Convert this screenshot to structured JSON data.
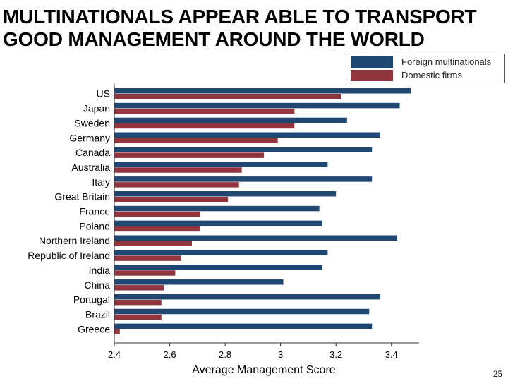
{
  "slide": {
    "title_line1": "MULTINATIONALS APPEAR ABLE TO TRANSPORT",
    "title_line2": "GOOD MANAGEMENT AROUND THE WORLD",
    "page_number": "25"
  },
  "colors": {
    "foreign": "#1f4772",
    "domestic": "#93353f",
    "axis": "#333333"
  },
  "chart_data": {
    "type": "bar",
    "orientation": "horizontal",
    "title": "",
    "xlabel": "Average Management Score",
    "ylabel": "",
    "xlim": [
      2.4,
      3.5
    ],
    "xticks": [
      2.4,
      2.6,
      2.8,
      3,
      3.2,
      3.4
    ],
    "xtick_labels": [
      "2.4",
      "2.6",
      "2.8",
      "3",
      "3.2",
      "3.4"
    ],
    "legend_position": "top-right",
    "categories": [
      "US",
      "Japan",
      "Sweden",
      "Germany",
      "Canada",
      "Australia",
      "Italy",
      "Great Britain",
      "France",
      "Poland",
      "Northern Ireland",
      "Republic of Ireland",
      "India",
      "China",
      "Portugal",
      "Brazil",
      "Greece"
    ],
    "series": [
      {
        "name": "Foreign multinationals",
        "values": [
          3.47,
          3.43,
          3.24,
          3.36,
          3.33,
          3.17,
          3.33,
          3.2,
          3.14,
          3.15,
          3.42,
          3.17,
          3.15,
          3.01,
          3.36,
          3.32,
          3.33
        ]
      },
      {
        "name": "Domestic firms",
        "values": [
          3.22,
          3.05,
          3.05,
          2.99,
          2.94,
          2.86,
          2.85,
          2.81,
          2.71,
          2.71,
          2.68,
          2.64,
          2.62,
          2.58,
          2.57,
          2.57,
          2.42
        ]
      }
    ]
  }
}
